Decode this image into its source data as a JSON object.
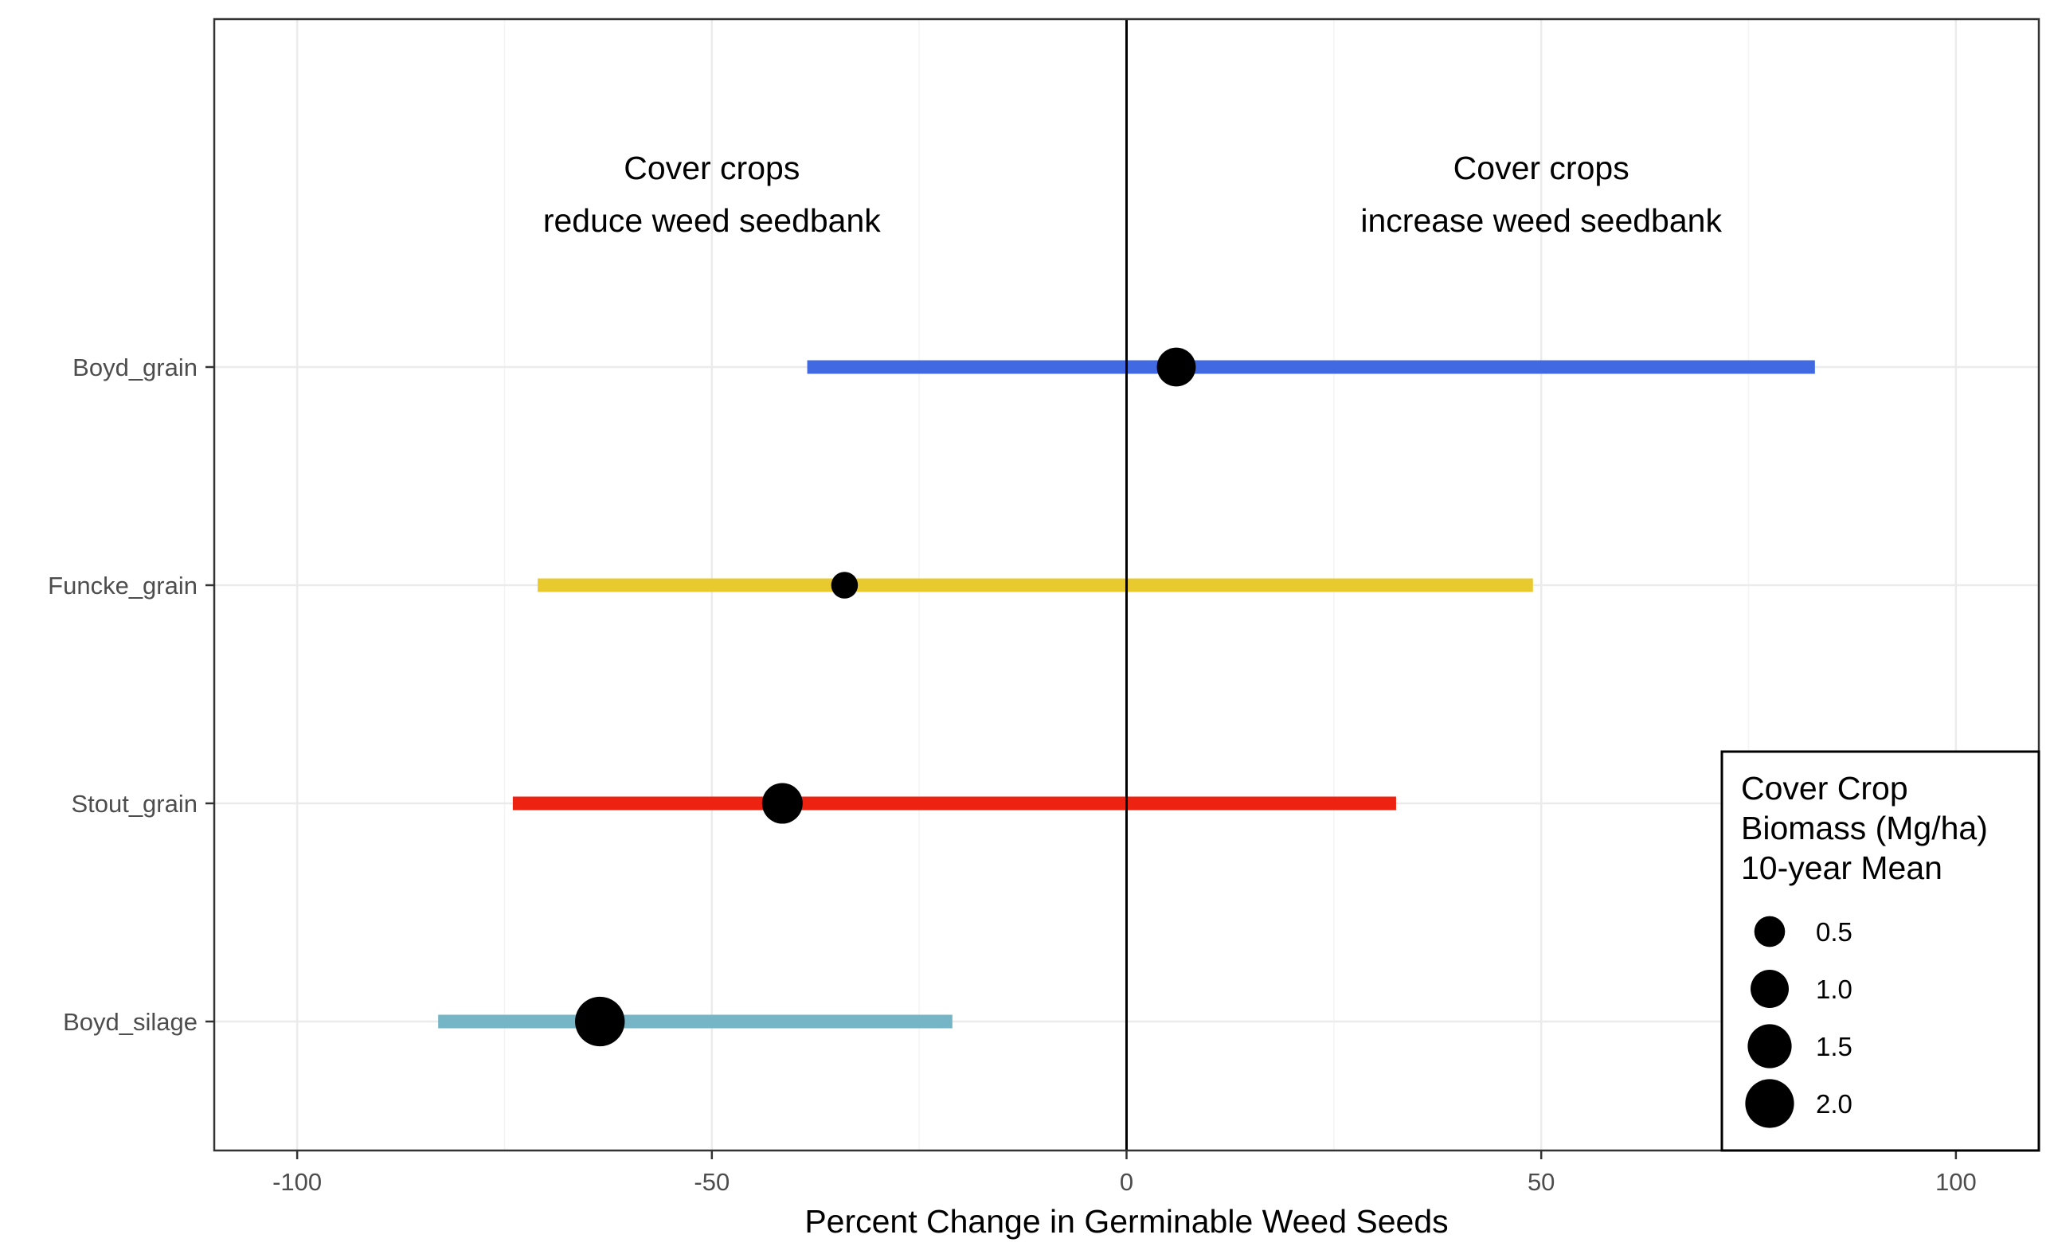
{
  "chart_data": {
    "type": "forest",
    "xlabel": "Percent Change in Germinable Weed Seeds",
    "xlim": [
      -110,
      110
    ],
    "x_ticks": [
      -100,
      -50,
      0,
      50,
      100
    ],
    "x_tick_labels": [
      "-100",
      "-50",
      "0",
      "50",
      "100"
    ],
    "reference_line_x": 0,
    "grid": true,
    "annotations": [
      {
        "x": -50,
        "lines": [
          "Cover crops",
          "reduce weed seedbank"
        ]
      },
      {
        "x": 50,
        "lines": [
          "Cover crops",
          "increase weed seedbank"
        ]
      }
    ],
    "categories": [
      "Boyd_grain",
      "Funcke_grain",
      "Stout_grain",
      "Boyd_silage"
    ],
    "series": [
      {
        "name": "Boyd_grain",
        "estimate": 6,
        "lower": -38.5,
        "upper": 83,
        "biomass": 1.05,
        "color": "#4169E1"
      },
      {
        "name": "Funcke_grain",
        "estimate": -34,
        "lower": -71,
        "upper": 49,
        "biomass": 0.3,
        "color": "#E8C92E"
      },
      {
        "name": "Stout_grain",
        "estimate": -41.5,
        "lower": -74,
        "upper": 32.5,
        "biomass": 1.2,
        "color": "#EE2211"
      },
      {
        "name": "Boyd_silage",
        "estimate": -63.5,
        "lower": -83,
        "upper": -21,
        "biomass": 2.1,
        "color": "#76B5C5"
      }
    ],
    "legend": {
      "title_lines": [
        "Cover Crop",
        "Biomass (Mg/ha)",
        "10-year Mean"
      ],
      "placement": "bottom-right",
      "sizes": [
        0.5,
        1.0,
        1.5,
        2.0
      ],
      "labels": [
        "0.5",
        "1.0",
        "1.5",
        "2.0"
      ]
    }
  }
}
